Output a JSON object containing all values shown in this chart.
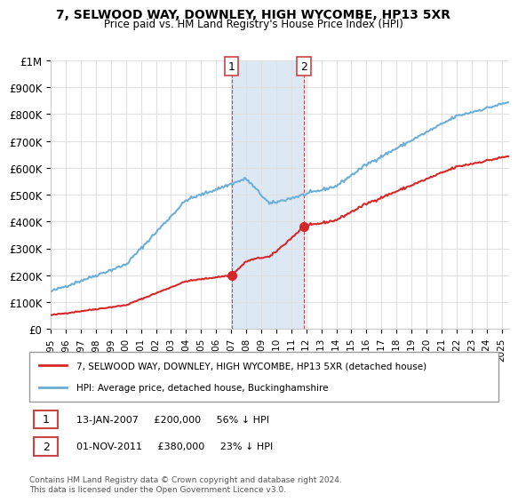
{
  "title": "7, SELWOOD WAY, DOWNLEY, HIGH WYCOMBE, HP13 5XR",
  "subtitle": "Price paid vs. HM Land Registry's House Price Index (HPI)",
  "ylabel": "",
  "ylim": [
    0,
    1000000
  ],
  "yticks": [
    0,
    100000,
    200000,
    300000,
    400000,
    500000,
    600000,
    700000,
    800000,
    900000,
    1000000
  ],
  "ytick_labels": [
    "£0",
    "£100K",
    "£200K",
    "£300K",
    "£400K",
    "£500K",
    "£600K",
    "£700K",
    "£800K",
    "£900K",
    "£1M"
  ],
  "hpi_color": "#6baed6",
  "sale_color": "#d62728",
  "sale_dot_color": "#d62728",
  "background_color": "#ffffff",
  "grid_color": "#e0e0e0",
  "highlight_color": "#dce9f5",
  "sale1_x": 2007.04,
  "sale1_y": 200000,
  "sale2_x": 2011.83,
  "sale2_y": 380000,
  "legend_label_sale": "7, SELWOOD WAY, DOWNLEY, HIGH WYCOMBE, HP13 5XR (detached house)",
  "legend_label_hpi": "HPI: Average price, detached house, Buckinghamshire",
  "annotation1": "13-JAN-2007     £200,000     56% ↓ HPI",
  "annotation2": "01-NOV-2011     £380,000     23% ↓ HPI",
  "footnote": "Contains HM Land Registry data © Crown copyright and database right 2024.\nThis data is licensed under the Open Government Licence v3.0.",
  "xmin": 1995,
  "xmax": 2025.5
}
